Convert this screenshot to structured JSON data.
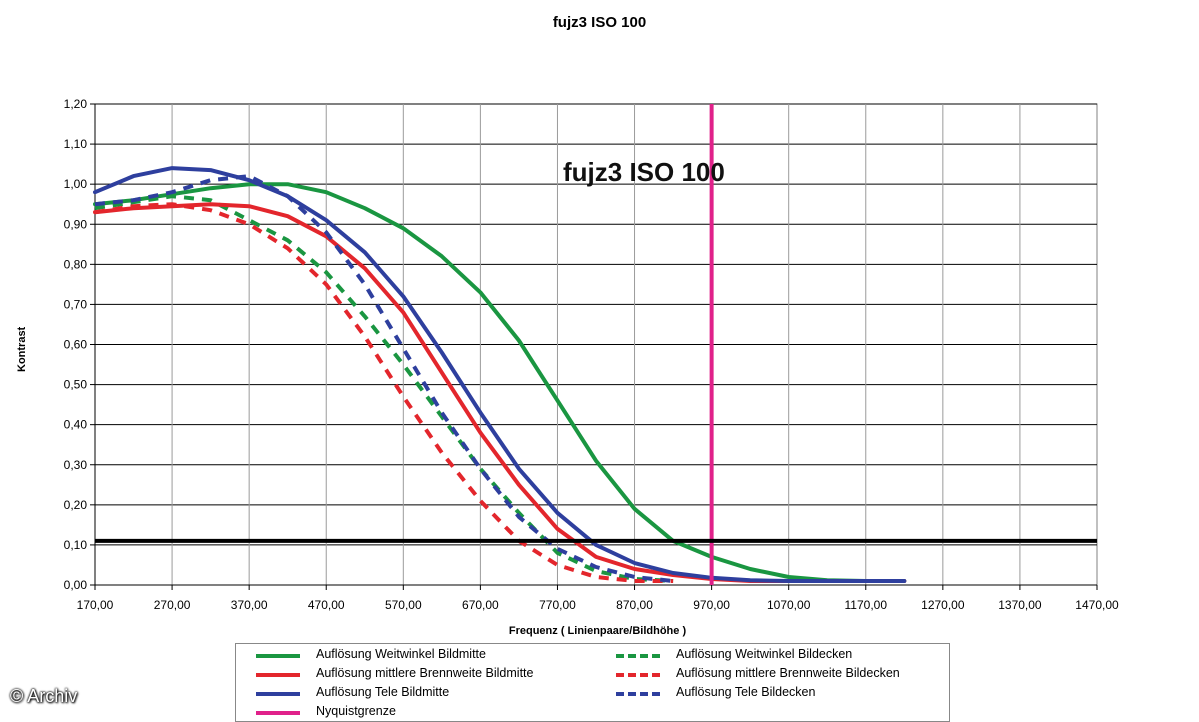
{
  "title": "fujz3 ISO 100",
  "inner_title": "fujz3 ISO 100",
  "copyright": "© Archiv",
  "colors": {
    "green": "#1a9641",
    "red": "#e3262c",
    "blue": "#2e3f9e",
    "magenta": "#e0218a",
    "threshold": "#000000",
    "grid": "#000000"
  },
  "chart_data": {
    "type": "line",
    "title": "fujz3 ISO 100",
    "xlabel": "Frequenz ( Linienpaare/Bildhöhe )",
    "ylabel": "Kontrast",
    "xlim": [
      170,
      1470
    ],
    "ylim": [
      0,
      1.2
    ],
    "x_ticks": [
      "170,00",
      "270,00",
      "370,00",
      "470,00",
      "570,00",
      "670,00",
      "770,00",
      "870,00",
      "970,00",
      "1070,00",
      "1170,00",
      "1270,00",
      "1370,00",
      "1470,00"
    ],
    "y_ticks": [
      "0,00",
      "0,10",
      "0,20",
      "0,30",
      "0,40",
      "0,50",
      "0,60",
      "0,70",
      "0,80",
      "0,90",
      "1,00",
      "1,10",
      "1,20"
    ],
    "grid": true,
    "legend_position": "bottom",
    "series": [
      {
        "name": "Auflösung Weitwinkel Bildmitte",
        "color": "#1a9641",
        "style": "solid",
        "x": [
          170,
          220,
          270,
          320,
          370,
          420,
          470,
          520,
          570,
          620,
          670,
          720,
          770,
          820,
          870,
          920,
          970,
          1020,
          1070,
          1120,
          1170,
          1220
        ],
        "y": [
          0.95,
          0.96,
          0.975,
          0.99,
          1.0,
          1.0,
          0.98,
          0.94,
          0.89,
          0.82,
          0.73,
          0.61,
          0.46,
          0.31,
          0.19,
          0.11,
          0.07,
          0.04,
          0.02,
          0.012,
          0.01,
          0.01
        ]
      },
      {
        "name": "Auflösung Weitwinkel Bildecken",
        "color": "#1a9641",
        "style": "dashed",
        "x": [
          170,
          220,
          270,
          320,
          370,
          420,
          470,
          520,
          570,
          620,
          670,
          720,
          770,
          820,
          870,
          920
        ],
        "y": [
          0.94,
          0.955,
          0.97,
          0.96,
          0.91,
          0.86,
          0.78,
          0.67,
          0.55,
          0.42,
          0.29,
          0.18,
          0.08,
          0.035,
          0.015,
          0.01
        ]
      },
      {
        "name": "Auflösung mittlere Brennweite Bildmitte",
        "color": "#e3262c",
        "style": "solid",
        "x": [
          170,
          220,
          270,
          320,
          370,
          420,
          470,
          520,
          570,
          620,
          670,
          720,
          770,
          820,
          870,
          920,
          970,
          1020,
          1070,
          1120,
          1170,
          1220
        ],
        "y": [
          0.93,
          0.94,
          0.945,
          0.95,
          0.945,
          0.92,
          0.87,
          0.79,
          0.68,
          0.53,
          0.38,
          0.25,
          0.14,
          0.07,
          0.04,
          0.025,
          0.015,
          0.01,
          0.01,
          0.01,
          0.01,
          0.01
        ]
      },
      {
        "name": "Auflösung mittlere Brennweite Bildecken",
        "color": "#e3262c",
        "style": "dashed",
        "x": [
          170,
          220,
          270,
          320,
          370,
          420,
          470,
          520,
          570,
          620,
          670,
          720,
          770,
          820,
          870,
          920
        ],
        "y": [
          0.93,
          0.945,
          0.95,
          0.935,
          0.9,
          0.84,
          0.75,
          0.62,
          0.47,
          0.33,
          0.21,
          0.11,
          0.05,
          0.02,
          0.01,
          0.01
        ]
      },
      {
        "name": "Auflösung Tele Bildmitte",
        "color": "#2e3f9e",
        "style": "solid",
        "x": [
          170,
          220,
          270,
          320,
          370,
          420,
          470,
          520,
          570,
          620,
          670,
          720,
          770,
          820,
          870,
          920,
          970,
          1020,
          1070,
          1120,
          1170,
          1220
        ],
        "y": [
          0.98,
          1.02,
          1.04,
          1.035,
          1.01,
          0.97,
          0.91,
          0.83,
          0.72,
          0.58,
          0.43,
          0.29,
          0.18,
          0.1,
          0.055,
          0.03,
          0.018,
          0.012,
          0.01,
          0.01,
          0.01,
          0.01
        ]
      },
      {
        "name": "Auflösung Tele Bildecken",
        "color": "#2e3f9e",
        "style": "dashed",
        "x": [
          170,
          220,
          270,
          320,
          370,
          420,
          470,
          520,
          570,
          620,
          670,
          720,
          770,
          820,
          870,
          920
        ],
        "y": [
          0.95,
          0.96,
          0.98,
          1.01,
          1.02,
          0.97,
          0.88,
          0.75,
          0.59,
          0.43,
          0.29,
          0.17,
          0.09,
          0.045,
          0.02,
          0.01
        ]
      }
    ],
    "reference_lines": [
      {
        "name": "Nyquistgrenze",
        "orientation": "vertical",
        "x": 970,
        "color": "#e0218a"
      },
      {
        "orientation": "horizontal",
        "y": 0.11,
        "color": "#000000"
      }
    ],
    "legend": [
      {
        "label": "Auflösung Weitwinkel Bildmitte",
        "color": "#1a9641",
        "style": "solid"
      },
      {
        "label": "Auflösung Weitwinkel Bildecken",
        "color": "#1a9641",
        "style": "dashed"
      },
      {
        "label": "Auflösung mittlere Brennweite Bildmitte",
        "color": "#e3262c",
        "style": "solid"
      },
      {
        "label": "Auflösung mittlere Brennweite Bildecken",
        "color": "#e3262c",
        "style": "dashed"
      },
      {
        "label": "Auflösung Tele Bildmitte",
        "color": "#2e3f9e",
        "style": "solid"
      },
      {
        "label": "Auflösung Tele Bildecken",
        "color": "#2e3f9e",
        "style": "dashed"
      },
      {
        "label": "Nyquistgrenze",
        "color": "#e0218a",
        "style": "solid"
      }
    ]
  }
}
